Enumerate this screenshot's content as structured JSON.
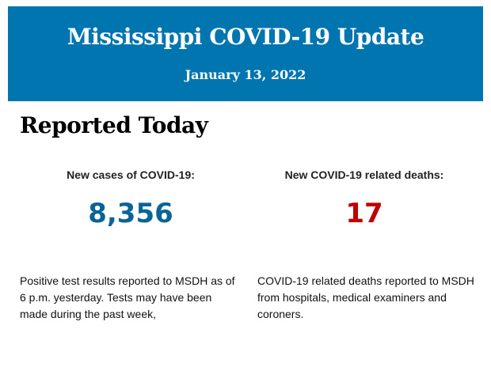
{
  "header": {
    "title": "Mississippi COVID-19 Update",
    "date": "January 13, 2022",
    "background_color": "#0075b0"
  },
  "section": {
    "heading": "Reported Today"
  },
  "stats": [
    {
      "label": "New cases of COVID-19:",
      "value": "8,356",
      "color": "#0a6496",
      "description": "Positive test results reported to MSDH as of 6 p.m. yesterday. Tests may have been made during the past week,"
    },
    {
      "label": "New COVID-19 related deaths:",
      "value": "17",
      "color": "#c00000",
      "description": "COVID-19 related deaths reported to MSDH from hospitals, medical examiners and coroners."
    }
  ]
}
